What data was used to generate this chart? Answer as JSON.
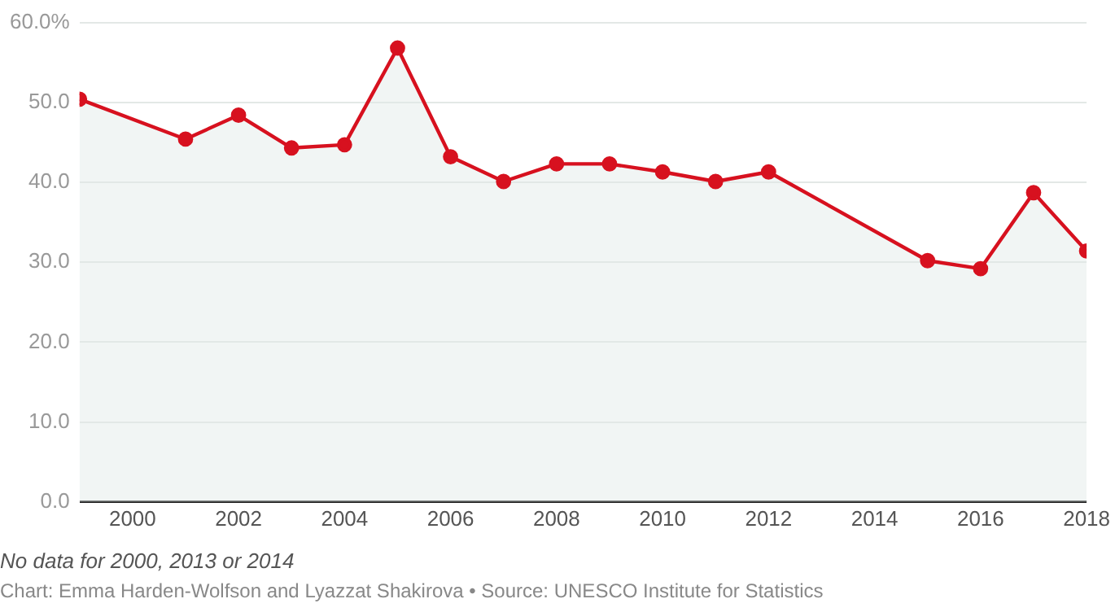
{
  "chart_data": {
    "type": "area",
    "x": [
      1999,
      2001,
      2002,
      2003,
      2004,
      2005,
      2006,
      2007,
      2008,
      2009,
      2010,
      2011,
      2012,
      2015,
      2016,
      2017,
      2018
    ],
    "series": [
      {
        "color": "#d7111f",
        "values": [
          50.4,
          45.4,
          48.4,
          44.3,
          44.7,
          56.8,
          43.2,
          40.1,
          42.3,
          42.3,
          41.3,
          40.1,
          41.3,
          30.2,
          29.2,
          38.7,
          31.4
        ]
      }
    ],
    "xlim": [
      1999,
      2018
    ],
    "xticks": [
      2000,
      2002,
      2004,
      2006,
      2008,
      2010,
      2012,
      2014,
      2016,
      2018
    ],
    "ylim": [
      0,
      60
    ],
    "yticks": [
      {
        "value": 0,
        "label": "0.0"
      },
      {
        "value": 10,
        "label": "10.0"
      },
      {
        "value": 20,
        "label": "20.0"
      },
      {
        "value": 30,
        "label": "30.0"
      },
      {
        "value": 40,
        "label": "40.0"
      },
      {
        "value": 50,
        "label": "50.0"
      },
      {
        "value": 60,
        "label": "60.0%"
      }
    ],
    "grid": "y",
    "legend": false,
    "marker": "circle",
    "line_style": "solid",
    "annotations": [
      "No data for 2000, 2013 or 2014",
      "Chart: Emma Harden-Wolfson and Lyazzat Shakirova • Source: UNESCO Institute for Statistics"
    ]
  }
}
